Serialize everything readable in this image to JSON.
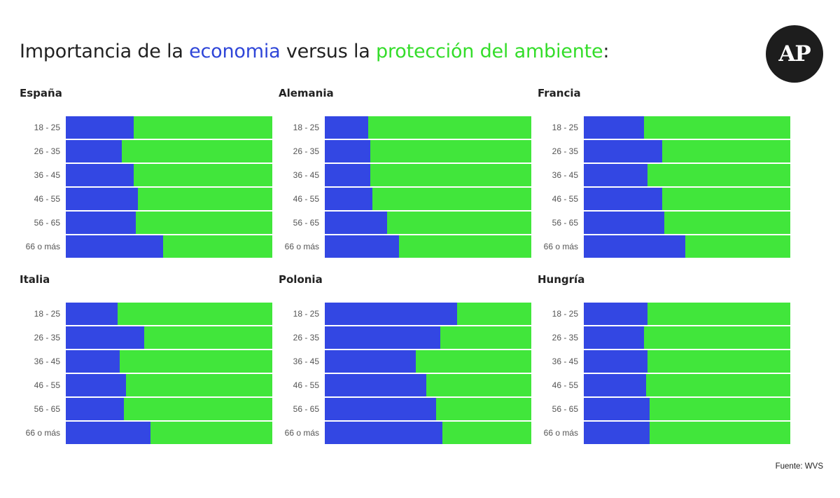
{
  "header": {
    "title_prefix": "Importancia de la ",
    "title_econ": "economia",
    "title_mid": " versus la ",
    "title_env": "protección del ambiente",
    "title_suffix": ":"
  },
  "logo": {
    "text": "AP"
  },
  "footer": {
    "source": "Fuente: WVS"
  },
  "colors": {
    "economy": "#3347e3",
    "environment": "#41e63b",
    "text": "#222222"
  },
  "chart_data": {
    "type": "bar",
    "stacked": true,
    "orientation": "horizontal",
    "normalized_to": 100,
    "categories": [
      "18 - 25",
      "26 - 35",
      "36 - 45",
      "46 - 55",
      "56 - 65",
      "66 o más"
    ],
    "panels": [
      {
        "title": "España",
        "economy_pct": [
          33,
          27,
          33,
          35,
          34,
          47
        ]
      },
      {
        "title": "Alemania",
        "economy_pct": [
          21,
          22,
          22,
          23,
          30,
          36
        ]
      },
      {
        "title": "Francia",
        "economy_pct": [
          29,
          38,
          31,
          38,
          39,
          49
        ]
      },
      {
        "title": "Italia",
        "economy_pct": [
          25,
          38,
          26,
          29,
          28,
          41
        ]
      },
      {
        "title": "Polonia",
        "economy_pct": [
          64,
          56,
          44,
          49,
          54,
          57
        ]
      },
      {
        "title": "Hungría",
        "economy_pct": [
          31,
          29,
          31,
          30,
          32,
          32
        ]
      }
    ],
    "series": [
      {
        "name": "economia",
        "color": "#3347e3"
      },
      {
        "name": "protección del ambiente",
        "color": "#41e63b"
      }
    ],
    "legend": "none"
  }
}
